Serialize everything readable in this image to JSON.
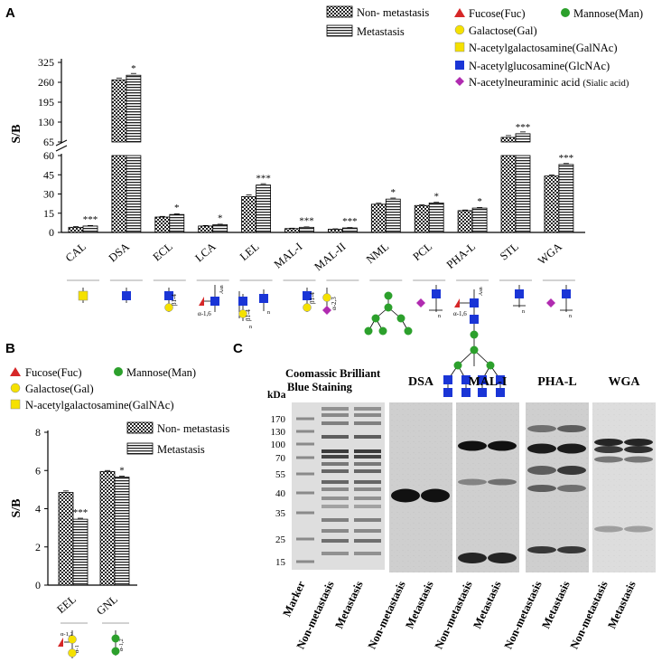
{
  "panels": {
    "a": "A",
    "b": "B",
    "c": "C"
  },
  "chart_data": [
    {
      "panel": "A",
      "type": "bar",
      "ylabel": "S/B",
      "categories": [
        "CAL",
        "DSA",
        "ECL",
        "LCA",
        "LEL",
        "MAL-I",
        "MAL-II",
        "NML",
        "PCL",
        "PHA-L",
        "STL",
        "WGA"
      ],
      "series": [
        {
          "name": "Non- metastasis",
          "pattern": "checker",
          "values": [
            4,
            268,
            12,
            5,
            28,
            3,
            2.5,
            22,
            21,
            17,
            80,
            44
          ],
          "err": [
            0.5,
            3,
            0.5,
            0.4,
            1.2,
            0.3,
            0.3,
            0.8,
            0.5,
            0.5,
            2,
            0.8
          ]
        },
        {
          "name": "Metastasis",
          "pattern": "hlines",
          "values": [
            5,
            283,
            14,
            6,
            37,
            4,
            3.5,
            26,
            23,
            19,
            92,
            53
          ],
          "err": [
            0.4,
            3,
            0.5,
            0.4,
            1.0,
            0.3,
            0.3,
            0.8,
            0.5,
            0.5,
            2,
            0.8
          ]
        }
      ],
      "significance": [
        "***",
        "*",
        "*",
        "*",
        "***",
        "***",
        "***",
        "*",
        "*",
        "*",
        "***",
        "***"
      ],
      "yticks_lower": [
        "0",
        "15",
        "30",
        "45",
        "60"
      ],
      "yticks_upper": [
        "65",
        "130",
        "195",
        "260",
        "325"
      ],
      "ylim_lower": [
        0,
        60
      ],
      "ylim_upper": [
        65,
        325
      ],
      "axis_break": true,
      "legend": [
        "Non- metastasis",
        "Metastasis"
      ],
      "legend_position": "top-center"
    },
    {
      "panel": "B",
      "type": "bar",
      "ylabel": "S/B",
      "categories": [
        "EEL",
        "GNL"
      ],
      "series": [
        {
          "name": "Non- metastasis",
          "pattern": "checker",
          "values": [
            4.85,
            5.95
          ],
          "err": [
            0.08,
            0.05
          ]
        },
        {
          "name": "Metastasis",
          "pattern": "hlines",
          "values": [
            3.45,
            5.65
          ],
          "err": [
            0.05,
            0.05
          ]
        }
      ],
      "significance": [
        "***",
        "*"
      ],
      "yticks": [
        "0",
        "2",
        "4",
        "6",
        "8"
      ],
      "ylim": [
        0,
        8
      ],
      "legend": [
        "Non- metastasis",
        "Metastasis"
      ],
      "legend_position": "top-right"
    }
  ],
  "sugar_legend_a": [
    {
      "shape": "triangle",
      "color": "#d62728",
      "label": "Fucose(Fuc)"
    },
    {
      "shape": "circle",
      "color": "#2ca02c",
      "label": "Mannose(Man)"
    },
    {
      "shape": "circle",
      "color": "#f5e100",
      "label": "Galactose(Gal)"
    },
    {
      "shape": "square",
      "color": "#f5e100",
      "label": "N-acetylgalactosamine(GalNAc)"
    },
    {
      "shape": "square",
      "color": "#1a35d6",
      "label": "N-acetylglucosamine(GlcNAc)"
    },
    {
      "shape": "diamond",
      "color": "#b02bb0",
      "label": "N-acetylneuraminic acid",
      "suffix": "(Sialic acid)"
    }
  ],
  "sugar_legend_b": [
    {
      "shape": "triangle",
      "color": "#d62728",
      "label": "Fucose(Fuc)"
    },
    {
      "shape": "circle",
      "color": "#2ca02c",
      "label": "Mannose(Man)"
    },
    {
      "shape": "circle",
      "color": "#f5e100",
      "label": "Galactose(Gal)"
    },
    {
      "shape": "square",
      "color": "#f5e100",
      "label": "N-acetylgalactosamine(GalNAc)"
    }
  ],
  "glycan_labels": {
    "ecl": "β1-4",
    "lca": "α-1,6",
    "lca_asn": "Asn",
    "lel": "β1-4",
    "lel_n": "n",
    "mal1": "β1-4",
    "mal2": "α-2,3",
    "pcl_n": "n",
    "phal": "α-1,6",
    "phal_asn": "Asn",
    "stl_n": "n",
    "wga_n": "n",
    "eel_a": "α-1,2",
    "eel_b": "α-1",
    "gnl": "α-1,2"
  },
  "panel_c": {
    "kda_label": "kDa",
    "markers": [
      "170",
      "130",
      "100",
      "70",
      "55",
      "40",
      "35",
      "25",
      "15"
    ],
    "gel_title": "Coomassic Brilliant Blue Staining",
    "blots": [
      "DSA",
      "MAL-I",
      "PHA-L",
      "WGA"
    ],
    "lane_labels": [
      "Marker",
      "Non-metastasis",
      "Metastasis",
      "Non-metastasis",
      "Metastasis",
      "Non-metastasis",
      "Metastasis",
      "Non-metastasis",
      "Metastasis",
      "Non-metastasis",
      "Metastasis"
    ]
  },
  "colors": {
    "triangle": "#d62728",
    "mannose": "#2ca02c",
    "galactose": "#f5e100",
    "glcnac": "#1a35d6",
    "sialic": "#b02bb0"
  }
}
